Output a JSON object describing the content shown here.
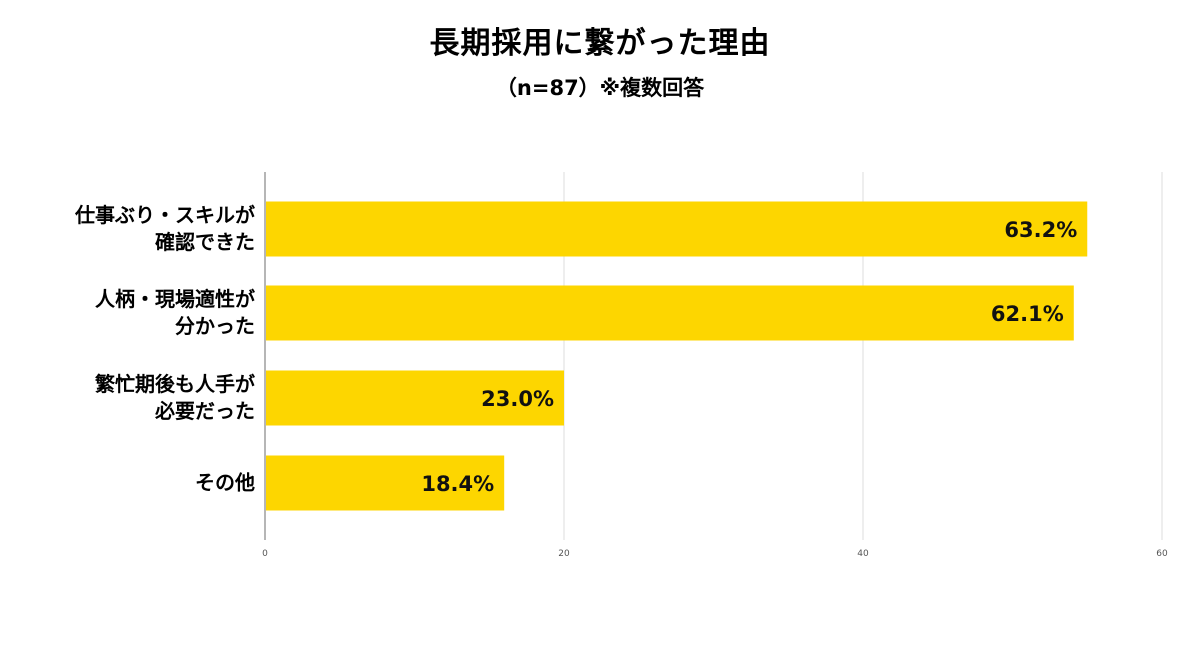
{
  "title": "長期採用に繋がった理由",
  "subtitle": "（n=87）※複数回答",
  "chart_data": {
    "type": "bar",
    "orientation": "horizontal",
    "title": "長期採用に繋がった理由",
    "subtitle": "（n=87）※複数回答",
    "categories": [
      [
        "仕事ぶり・スキルが",
        "確認できた"
      ],
      [
        "人柄・現場適性が",
        "分かった"
      ],
      [
        "繁忙期後も人手が",
        "必要だった"
      ],
      [
        "その他"
      ]
    ],
    "values": [
      55.0,
      54.1,
      20.0,
      16.0
    ],
    "data_labels": [
      "63.2%",
      "62.1%",
      "23.0%",
      "18.4%"
    ],
    "xlim": [
      0,
      60
    ],
    "x_ticks": [
      "0",
      "20",
      "40",
      "60"
    ],
    "grid": true,
    "bar_color": "#FDD600",
    "grid_color": "#dcdcdc",
    "axis_color": "#9e9e9e"
  }
}
